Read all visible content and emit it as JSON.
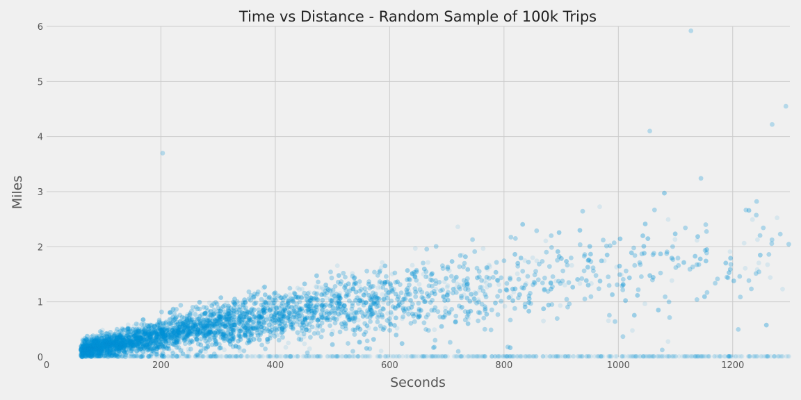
{
  "chart_data": {
    "type": "scatter",
    "title": "Time vs Distance - Random Sample of 100k Trips",
    "xlabel": "Seconds",
    "ylabel": "Miles",
    "xlim": [
      0,
      1300
    ],
    "ylim": [
      0,
      6
    ],
    "xticks": [
      0,
      200,
      400,
      600,
      800,
      1000,
      1200
    ],
    "yticks": [
      0,
      1,
      2,
      3,
      4,
      5,
      6
    ],
    "xtick_labels": [
      "0",
      "200",
      "400",
      "600",
      "800",
      "1000",
      "1200"
    ],
    "ytick_labels": [
      "0",
      "1",
      "2",
      "3",
      "4",
      "5",
      "6"
    ],
    "grid": true,
    "n_points": 100000,
    "point_color": "#008fd5",
    "point_alpha": 0.1,
    "series": [
      {
        "name": "trips",
        "trend_points": [
          {
            "x": 60,
            "y": 0.12
          },
          {
            "x": 200,
            "y": 0.4
          },
          {
            "x": 400,
            "y": 0.75
          },
          {
            "x": 600,
            "y": 1.05
          },
          {
            "x": 800,
            "y": 1.35
          },
          {
            "x": 1000,
            "y": 1.6
          },
          {
            "x": 1200,
            "y": 1.8
          },
          {
            "x": 1300,
            "y": 1.9
          }
        ],
        "notable_points": [
          {
            "x": 203,
            "y": 3.7
          },
          {
            "x": 1127,
            "y": 5.92
          },
          {
            "x": 1293,
            "y": 4.55
          },
          {
            "x": 1055,
            "y": 4.1
          },
          {
            "x": 1269,
            "y": 4.22
          }
        ]
      }
    ]
  },
  "colors": {
    "background": "#f0f0f0",
    "grid": "#cbcbcb",
    "text": "#555555",
    "points": "#008fd5"
  }
}
